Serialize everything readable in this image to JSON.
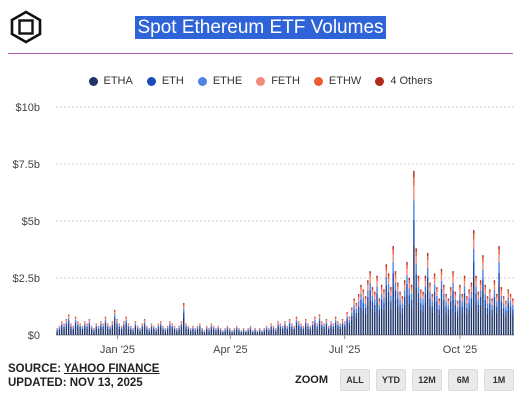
{
  "title": "Spot Ethereum ETF Volumes",
  "legend": [
    {
      "name": "ETHA",
      "color": "#1f3468"
    },
    {
      "name": "ETH",
      "color": "#1b4bb8"
    },
    {
      "name": "ETHE",
      "color": "#4f86e3"
    },
    {
      "name": "FETH",
      "color": "#f28b7a"
    },
    {
      "name": "ETHW",
      "color": "#ee5a34"
    },
    {
      "name": "4 Others",
      "color": "#b02a1e"
    }
  ],
  "footer": {
    "source_label": "SOURCE: ",
    "source_link": "YAHOO FINANCE",
    "updated": "UPDATED: NOV 13, 2025"
  },
  "zoom": {
    "label": "ZOOM",
    "buttons": [
      "ALL",
      "YTD",
      "12M",
      "6M",
      "1M"
    ]
  },
  "chart_data": {
    "type": "bar",
    "stacked": true,
    "title": "Spot Ethereum ETF Volumes",
    "y_ticks": [
      "$0",
      "$2.5b",
      "$5b",
      "$7.5b",
      "$10b"
    ],
    "ylim": [
      0,
      10
    ],
    "y_unit": "billion USD",
    "x_ticks": [
      "Jan '25",
      "Apr '25",
      "Jul '25",
      "Oct '25"
    ],
    "x_range": [
      "2024-11-13",
      "2025-11-13"
    ],
    "grid": "horizontal dashed",
    "legend_position": "top",
    "series_names": [
      "ETHA",
      "ETH",
      "ETHE",
      "FETH",
      "ETHW",
      "4 Others"
    ],
    "total_daily_volume_b": [
      0.3,
      0.4,
      0.6,
      0.5,
      0.7,
      0.9,
      0.5,
      0.4,
      0.8,
      0.6,
      0.5,
      0.4,
      0.6,
      0.5,
      0.7,
      0.4,
      0.3,
      0.5,
      0.4,
      0.6,
      0.5,
      0.8,
      0.5,
      0.4,
      0.6,
      1.1,
      0.7,
      0.5,
      0.4,
      0.6,
      0.8,
      0.5,
      0.4,
      0.3,
      0.6,
      0.4,
      0.3,
      0.5,
      0.7,
      0.4,
      0.3,
      0.5,
      0.4,
      0.3,
      0.5,
      0.6,
      0.4,
      0.3,
      0.4,
      0.6,
      0.5,
      0.4,
      0.3,
      0.4,
      0.6,
      1.4,
      0.5,
      0.4,
      0.3,
      0.4,
      0.3,
      0.4,
      0.5,
      0.3,
      0.2,
      0.4,
      0.3,
      0.5,
      0.4,
      0.3,
      0.4,
      0.3,
      0.2,
      0.3,
      0.4,
      0.3,
      0.2,
      0.3,
      0.4,
      0.3,
      0.2,
      0.3,
      0.2,
      0.3,
      0.4,
      0.2,
      0.3,
      0.2,
      0.3,
      0.2,
      0.3,
      0.4,
      0.3,
      0.5,
      0.4,
      0.3,
      0.6,
      0.5,
      0.4,
      0.6,
      0.4,
      0.7,
      0.5,
      0.4,
      0.8,
      0.6,
      0.5,
      0.4,
      0.7,
      0.5,
      0.4,
      0.6,
      0.8,
      0.5,
      0.9,
      0.6,
      0.5,
      0.7,
      0.4,
      0.6,
      0.5,
      0.8,
      0.6,
      0.5,
      0.7,
      0.6,
      1.0,
      0.8,
      1.2,
      1.6,
      1.4,
      1.8,
      2.2,
      2.0,
      1.7,
      2.4,
      2.8,
      2.1,
      1.9,
      2.6,
      1.6,
      2.2,
      2.0,
      3.1,
      2.7,
      2.1,
      3.9,
      2.8,
      2.3,
      1.9,
      1.7,
      2.4,
      3.2,
      2.5,
      2.2,
      7.2,
      3.8,
      2.6,
      2.0,
      1.9,
      2.6,
      3.6,
      2.3,
      1.8,
      2.7,
      2.1,
      1.6,
      2.9,
      2.2,
      1.8,
      1.6,
      2.1,
      2.8,
      1.9,
      1.5,
      2.2,
      1.8,
      2.6,
      1.7,
      2.0,
      2.3,
      4.6,
      2.6,
      1.9,
      2.4,
      3.5,
      2.2,
      1.7,
      2.0,
      1.6,
      2.4,
      1.8,
      3.9,
      2.1,
      1.7,
      1.5,
      2.0,
      1.8,
      1.6
    ]
  }
}
